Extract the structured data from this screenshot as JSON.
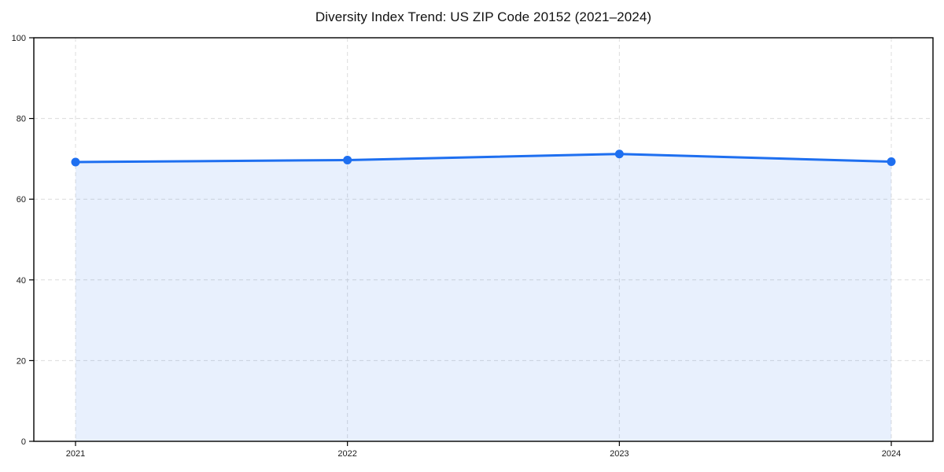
{
  "title": "Diversity Index Trend: US ZIP Code 20152 (2021–2024)",
  "colors": {
    "line": "#1e6ff0",
    "marker": "#1e6ff0",
    "fill": "#1e6ff0",
    "fill_opacity": 0.1,
    "grid": "#dcdcdc",
    "spine": "#000000",
    "tick_label": "#1a1a1a",
    "background": "#ffffff"
  },
  "chart_data": {
    "type": "area",
    "title": "Diversity Index Trend: US ZIP Code 20152 (2021–2024)",
    "categories": [
      "2021",
      "2022",
      "2023",
      "2024"
    ],
    "series": [
      {
        "name": "Diversity Index",
        "values": [
          69.2,
          69.7,
          71.2,
          69.3
        ]
      }
    ],
    "xlabel": "",
    "ylabel": "",
    "ylim": [
      0,
      100
    ],
    "yticks": [
      0,
      20,
      40,
      60,
      80,
      100
    ],
    "grid": true,
    "grid_style": "dashed",
    "legend": "none",
    "marker": "circle",
    "fill_to_zero": true
  }
}
